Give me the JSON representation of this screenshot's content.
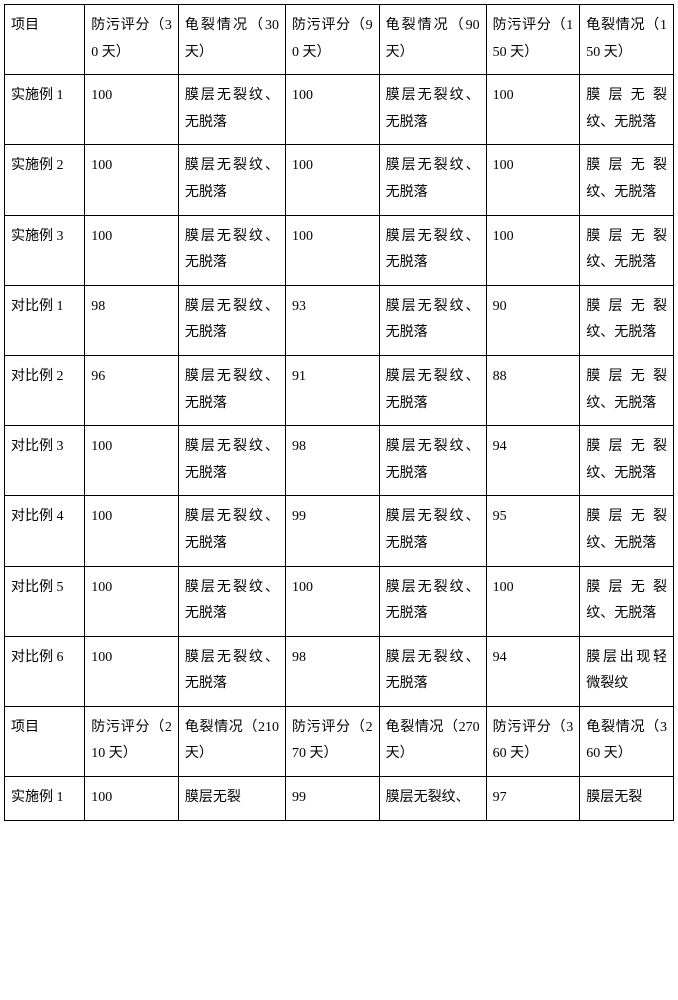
{
  "table": {
    "columns": [
      "c1",
      "c2",
      "c3",
      "c4",
      "c5",
      "c6",
      "c7"
    ],
    "rows": [
      [
        "项目",
        "防污评分（30 天）",
        "龟裂情况（30 天）",
        "防污评分（90 天）",
        "龟裂情况（90天）",
        "防污评分（150 天）",
        "龟裂情况（150 天）"
      ],
      [
        "实施例 1",
        "100",
        "膜层无裂纹、无脱落",
        "100",
        "膜层无裂纹、无脱落",
        "100",
        "膜层无裂纹、无脱落"
      ],
      [
        "实施例 2",
        "100",
        "膜层无裂纹、无脱落",
        "100",
        "膜层无裂纹、无脱落",
        "100",
        "膜层无裂纹、无脱落"
      ],
      [
        "实施例 3",
        "100",
        "膜层无裂纹、无脱落",
        "100",
        "膜层无裂纹、无脱落",
        "100",
        "膜层无裂纹、无脱落"
      ],
      [
        "对比例 1",
        "98",
        "膜层无裂纹、无脱落",
        "93",
        "膜层无裂纹、无脱落",
        "90",
        "膜层无裂纹、无脱落"
      ],
      [
        "对比例 2",
        "96",
        "膜层无裂纹、无脱落",
        "91",
        "膜层无裂纹、无脱落",
        "88",
        "膜层无裂纹、无脱落"
      ],
      [
        "对比例 3",
        "100",
        "膜层无裂纹、无脱落",
        "98",
        "膜层无裂纹、无脱落",
        "94",
        "膜层无裂纹、无脱落"
      ],
      [
        "对比例 4",
        "100",
        "膜层无裂纹、无脱落",
        "99",
        "膜层无裂纹、无脱落",
        "95",
        "膜层无裂纹、无脱落"
      ],
      [
        "对比例 5",
        "100",
        "膜层无裂纹、无脱落",
        "100",
        "膜层无裂纹、无脱落",
        "100",
        "膜层无裂纹、无脱落"
      ],
      [
        "对比例 6",
        "100",
        "膜层无裂纹、无脱落",
        "98",
        "膜层无裂纹、无脱落",
        "94",
        "膜层出现轻微裂纹"
      ],
      [
        "项目",
        "防污评分（210 天）",
        "龟裂情况（210 天）",
        "防污评分（270 天）",
        "龟裂情况（270 天）",
        "防污评分（360 天）",
        "龟裂情况（360 天）"
      ],
      [
        "实施例 1",
        "100",
        "膜层无裂",
        "99",
        "膜层无裂纹、",
        "97",
        "膜层无裂"
      ]
    ],
    "font_size_pt": 14,
    "border_color": "#000000",
    "background_color": "#ffffff",
    "text_color": "#000000"
  }
}
